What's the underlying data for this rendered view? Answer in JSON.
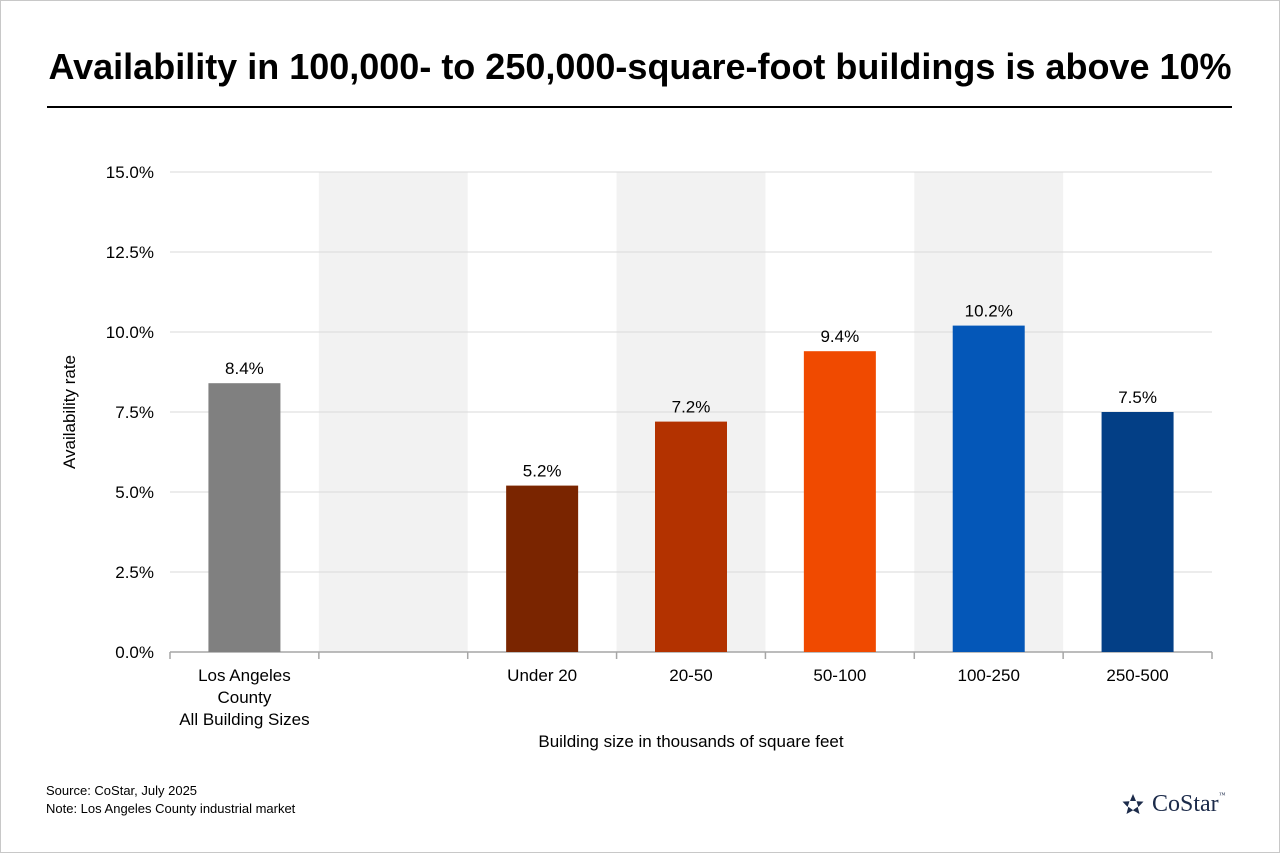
{
  "chart_data": {
    "type": "bar",
    "title": "Availability in 100,000- to 250,000-square-foot buildings is above 10%",
    "xlabel": "Building size in thousands of square feet",
    "ylabel": "Availability rate",
    "ylim": [
      0,
      15
    ],
    "yticks": [
      "0.0%",
      "2.5%",
      "5.0%",
      "7.5%",
      "10.0%",
      "12.5%",
      "15.0%"
    ],
    "categories": [
      [
        "Los Angeles",
        "County",
        "All Building Sizes"
      ],
      [],
      [
        "Under 20"
      ],
      [
        "20-50"
      ],
      [
        "50-100"
      ],
      [
        "100-250"
      ],
      [
        "250-500"
      ]
    ],
    "values": [
      8.4,
      null,
      5.2,
      7.2,
      9.4,
      10.2,
      7.5
    ],
    "data_labels": [
      "8.4%",
      "",
      "5.2%",
      "7.2%",
      "9.4%",
      "10.2%",
      "7.5%"
    ],
    "colors": [
      "#808080",
      null,
      "#7a2500",
      "#b33200",
      "#f04a00",
      "#0457b8",
      "#033f86"
    ],
    "band_color": "#f2f2f2",
    "grid": true,
    "legend": "none"
  },
  "footer": {
    "source": "Source: CoStar, July 2025",
    "note": "Note: Los Angeles County industrial market"
  },
  "logo": {
    "text": "CoStar",
    "tm": "™",
    "icon": "costar-star-icon",
    "color": "#1c2b4a"
  }
}
